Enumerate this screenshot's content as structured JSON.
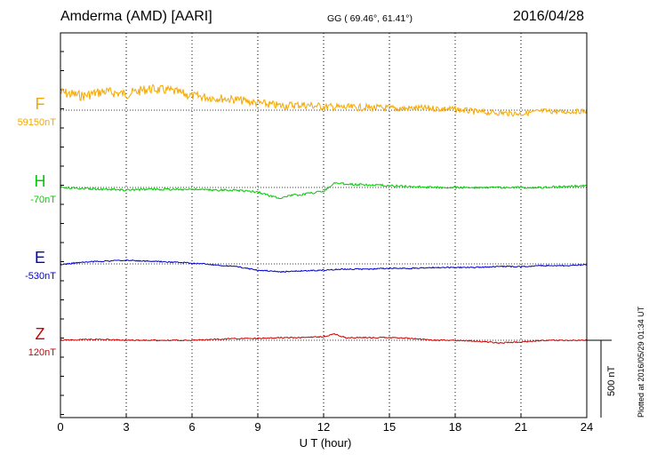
{
  "header": {
    "station": "Amderma (AMD)  [AARI]",
    "coords": "GG ( 69.46°,  61.41°)",
    "date": "2016/04/28"
  },
  "footer": {
    "xlabel": "U T (hour)",
    "plotted": "Plotted at 2016/05/29 01:34 UT",
    "scale_label": "500 nT"
  },
  "chart_data": {
    "type": "line",
    "xlabel": "U T (hour)",
    "xlim": [
      0,
      24
    ],
    "xticks": [
      0,
      3,
      6,
      9,
      12,
      15,
      18,
      21,
      24
    ],
    "grid": "vertical dotted lines every 3 hours",
    "scale_bar_nT": 500,
    "series": [
      {
        "name": "F",
        "baseline_label": "59150nT",
        "color": "#f5a800",
        "x": [
          0,
          1,
          2,
          3,
          4,
          5,
          6,
          7,
          8,
          9,
          10,
          11,
          12,
          13,
          14,
          15,
          16,
          17,
          18,
          19,
          20,
          21,
          22,
          23,
          24
        ],
        "values": [
          20,
          16,
          21,
          18,
          24,
          22,
          16,
          14,
          12,
          8,
          5,
          6,
          4,
          3,
          3,
          2,
          2,
          2,
          1,
          -2,
          -3,
          -4,
          -1,
          -2,
          -1
        ]
      },
      {
        "name": "H",
        "baseline_label": "-70nT",
        "color": "#00cc00",
        "x": [
          0,
          1,
          2,
          3,
          4,
          5,
          6,
          7,
          8,
          9,
          9.5,
          10,
          10.5,
          11,
          11.5,
          12,
          12.5,
          13,
          14,
          15,
          16,
          17,
          18,
          19,
          20,
          21,
          22,
          23,
          24
        ],
        "values": [
          0,
          -1,
          -2,
          -3,
          -2,
          -2,
          -2,
          -3,
          -3,
          -5,
          -9,
          -12,
          -9,
          -8,
          -6,
          -4,
          5,
          4,
          3,
          2,
          1,
          0,
          0,
          0,
          0,
          0,
          0,
          1,
          2
        ]
      },
      {
        "name": "E",
        "baseline_label": "-530nT",
        "color": "#0000cc",
        "x": [
          0,
          1,
          2,
          3,
          4,
          5,
          6,
          7,
          8,
          9,
          10,
          11,
          12,
          13,
          14,
          15,
          16,
          17,
          18,
          19,
          20,
          21,
          22,
          23,
          24
        ],
        "values": [
          -1,
          2,
          3,
          4,
          3,
          2,
          1,
          -1,
          -3,
          -7,
          -9,
          -8,
          -7,
          -6,
          -6,
          -5,
          -5,
          -4,
          -4,
          -4,
          -3,
          -3,
          -2,
          -2,
          -1
        ]
      },
      {
        "name": "Z",
        "baseline_label": "120nT",
        "color": "#cc0000",
        "x": [
          0,
          1,
          2,
          3,
          4,
          5,
          6,
          7,
          8,
          9,
          10,
          11,
          12,
          12.5,
          13,
          14,
          15,
          16,
          17,
          18,
          19,
          20,
          21,
          22,
          23,
          24
        ],
        "values": [
          0,
          1,
          1,
          0,
          0,
          0,
          0,
          1,
          2,
          2,
          3,
          3,
          4,
          7,
          3,
          3,
          3,
          2,
          0,
          0,
          -1,
          -3,
          -2,
          0,
          0,
          0
        ]
      }
    ]
  }
}
